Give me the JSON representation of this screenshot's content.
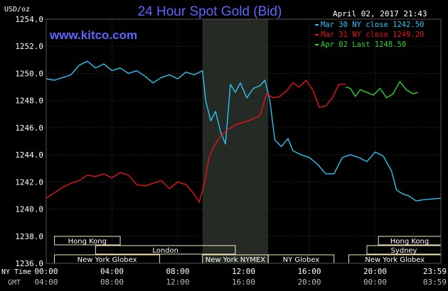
{
  "chart_data": {
    "type": "line",
    "title": "24 Hour Spot Gold (Bid)",
    "website": "www.kitco.com",
    "timestamp": "April 02, 2017 21:43",
    "ylabel": "USD/oz",
    "ylim": [
      1236.0,
      1254.0
    ],
    "y_ticks": [
      "1236.0",
      "1238.0",
      "1240.0",
      "1242.0",
      "1244.0",
      "1246.0",
      "1248.0",
      "1250.0",
      "1252.0",
      "1254.0"
    ],
    "xlim": [
      0,
      24
    ],
    "x_tick_positions": [
      0,
      4,
      8,
      12,
      16,
      20,
      24
    ],
    "x_axis_label": "NY Time",
    "x_tick_labels_ny": [
      "00:00",
      "04:00",
      "08:00",
      "12:00",
      "16:00",
      "20:00",
      "23:59"
    ],
    "x_axis_label_gmt": "GMT",
    "x_tick_labels_gmt": [
      "04:00",
      "08:00",
      "12:00",
      "16:00",
      "20:00",
      "00:00",
      "03:59"
    ],
    "shaded_session": [
      9.5,
      13.5
    ],
    "grid": true,
    "legend_position": "top-right",
    "colors": {
      "background": "#000000",
      "grid": "#2f2f2f",
      "shade": "#262a24",
      "session_box": "#f2e8b8",
      "session_text": "#ffffff"
    },
    "series": [
      {
        "name": "Mar 30 NY close 1242.50",
        "color": "#2ac4f2",
        "points": [
          [
            0,
            1249.6
          ],
          [
            0.5,
            1249.5
          ],
          [
            1,
            1249.7
          ],
          [
            1.5,
            1249.9
          ],
          [
            2,
            1250.6
          ],
          [
            2.5,
            1250.9
          ],
          [
            3,
            1250.4
          ],
          [
            3.5,
            1250.7
          ],
          [
            4,
            1250.2
          ],
          [
            4.5,
            1250.4
          ],
          [
            5,
            1250.0
          ],
          [
            5.5,
            1250.2
          ],
          [
            6,
            1249.8
          ],
          [
            6.5,
            1249.3
          ],
          [
            7,
            1249.7
          ],
          [
            7.5,
            1249.9
          ],
          [
            8,
            1249.6
          ],
          [
            8.5,
            1250.1
          ],
          [
            9,
            1249.9
          ],
          [
            9.5,
            1250.2
          ],
          [
            9.7,
            1248.0
          ],
          [
            10,
            1246.5
          ],
          [
            10.3,
            1247.2
          ],
          [
            10.6,
            1245.7
          ],
          [
            10.9,
            1244.8
          ],
          [
            11.2,
            1249.2
          ],
          [
            11.5,
            1248.6
          ],
          [
            11.8,
            1249.3
          ],
          [
            12.2,
            1248.2
          ],
          [
            12.6,
            1248.9
          ],
          [
            13,
            1249.1
          ],
          [
            13.3,
            1249.5
          ],
          [
            13.6,
            1248.0
          ],
          [
            13.9,
            1245.1
          ],
          [
            14.3,
            1244.6
          ],
          [
            14.7,
            1245.2
          ],
          [
            15.0,
            1244.3
          ],
          [
            15.5,
            1244.0
          ],
          [
            16.0,
            1243.8
          ],
          [
            16.5,
            1243.3
          ],
          [
            17.0,
            1242.6
          ],
          [
            17.5,
            1242.6
          ],
          [
            18.0,
            1243.8
          ],
          [
            18.5,
            1244.0
          ],
          [
            19.0,
            1243.8
          ],
          [
            19.5,
            1243.5
          ],
          [
            20.0,
            1244.2
          ],
          [
            20.5,
            1243.9
          ],
          [
            21.0,
            1242.8
          ],
          [
            21.3,
            1241.4
          ],
          [
            21.7,
            1241.1
          ],
          [
            22.0,
            1241.0
          ],
          [
            22.5,
            1240.6
          ],
          [
            23.0,
            1240.7
          ],
          [
            23.99,
            1240.8
          ]
        ]
      },
      {
        "name": "Mar 31 NY close 1249.20",
        "color": "#e3141b",
        "points": [
          [
            0,
            1240.8
          ],
          [
            0.5,
            1241.2
          ],
          [
            1,
            1241.6
          ],
          [
            1.5,
            1241.9
          ],
          [
            2,
            1242.1
          ],
          [
            2.5,
            1242.5
          ],
          [
            3,
            1242.4
          ],
          [
            3.5,
            1242.6
          ],
          [
            4,
            1242.3
          ],
          [
            4.5,
            1242.7
          ],
          [
            5,
            1242.5
          ],
          [
            5.5,
            1241.8
          ],
          [
            6,
            1241.7
          ],
          [
            6.5,
            1241.9
          ],
          [
            7,
            1242.1
          ],
          [
            7.5,
            1241.5
          ],
          [
            8,
            1242.0
          ],
          [
            8.5,
            1241.8
          ],
          [
            9,
            1241.1
          ],
          [
            9.3,
            1240.5
          ],
          [
            9.6,
            1241.8
          ],
          [
            9.9,
            1243.8
          ],
          [
            10.2,
            1244.6
          ],
          [
            10.6,
            1245.4
          ],
          [
            11.0,
            1245.8
          ],
          [
            11.5,
            1246.2
          ],
          [
            12.0,
            1246.4
          ],
          [
            12.5,
            1246.6
          ],
          [
            13.0,
            1246.9
          ],
          [
            13.4,
            1248.5
          ],
          [
            13.8,
            1248.2
          ],
          [
            14.2,
            1248.3
          ],
          [
            14.6,
            1248.7
          ],
          [
            15.0,
            1249.3
          ],
          [
            15.4,
            1249.0
          ],
          [
            15.8,
            1249.5
          ],
          [
            16.2,
            1248.8
          ],
          [
            16.6,
            1247.5
          ],
          [
            17.0,
            1247.6
          ],
          [
            17.4,
            1248.2
          ],
          [
            17.8,
            1249.2
          ],
          [
            18.2,
            1249.2
          ]
        ]
      },
      {
        "name": "Apr 02 Last 1248.50",
        "color": "#29d62e",
        "points": [
          [
            18.2,
            1249.0
          ],
          [
            18.5,
            1248.9
          ],
          [
            18.8,
            1248.3
          ],
          [
            19.1,
            1248.8
          ],
          [
            19.5,
            1248.6
          ],
          [
            19.9,
            1248.4
          ],
          [
            20.3,
            1248.9
          ],
          [
            20.7,
            1248.2
          ],
          [
            21.1,
            1248.5
          ],
          [
            21.5,
            1249.4
          ],
          [
            21.9,
            1248.8
          ],
          [
            22.3,
            1248.5
          ],
          [
            22.6,
            1248.6
          ]
        ]
      }
    ],
    "session_bars": [
      {
        "label": "Hong Kong",
        "start": 0.5,
        "end": 4.5,
        "row": 0
      },
      {
        "label": "Hong Kong",
        "start": 20.2,
        "end": 24.0,
        "row": 0
      },
      {
        "label": "London",
        "start": 3.0,
        "end": 11.5,
        "row": 1
      },
      {
        "label": "Sydney",
        "start": 19.5,
        "end": 24.0,
        "row": 1
      },
      {
        "label": "New York Globex",
        "start": 0.5,
        "end": 6.9,
        "row": 2
      },
      {
        "label": "New York NYMEX",
        "start": 9.5,
        "end": 13.5,
        "row": 2
      },
      {
        "label": "NY Globex",
        "start": 13.5,
        "end": 17.5,
        "row": 2
      },
      {
        "label": "New York Globex",
        "start": 18.4,
        "end": 24.0,
        "row": 2
      }
    ]
  }
}
